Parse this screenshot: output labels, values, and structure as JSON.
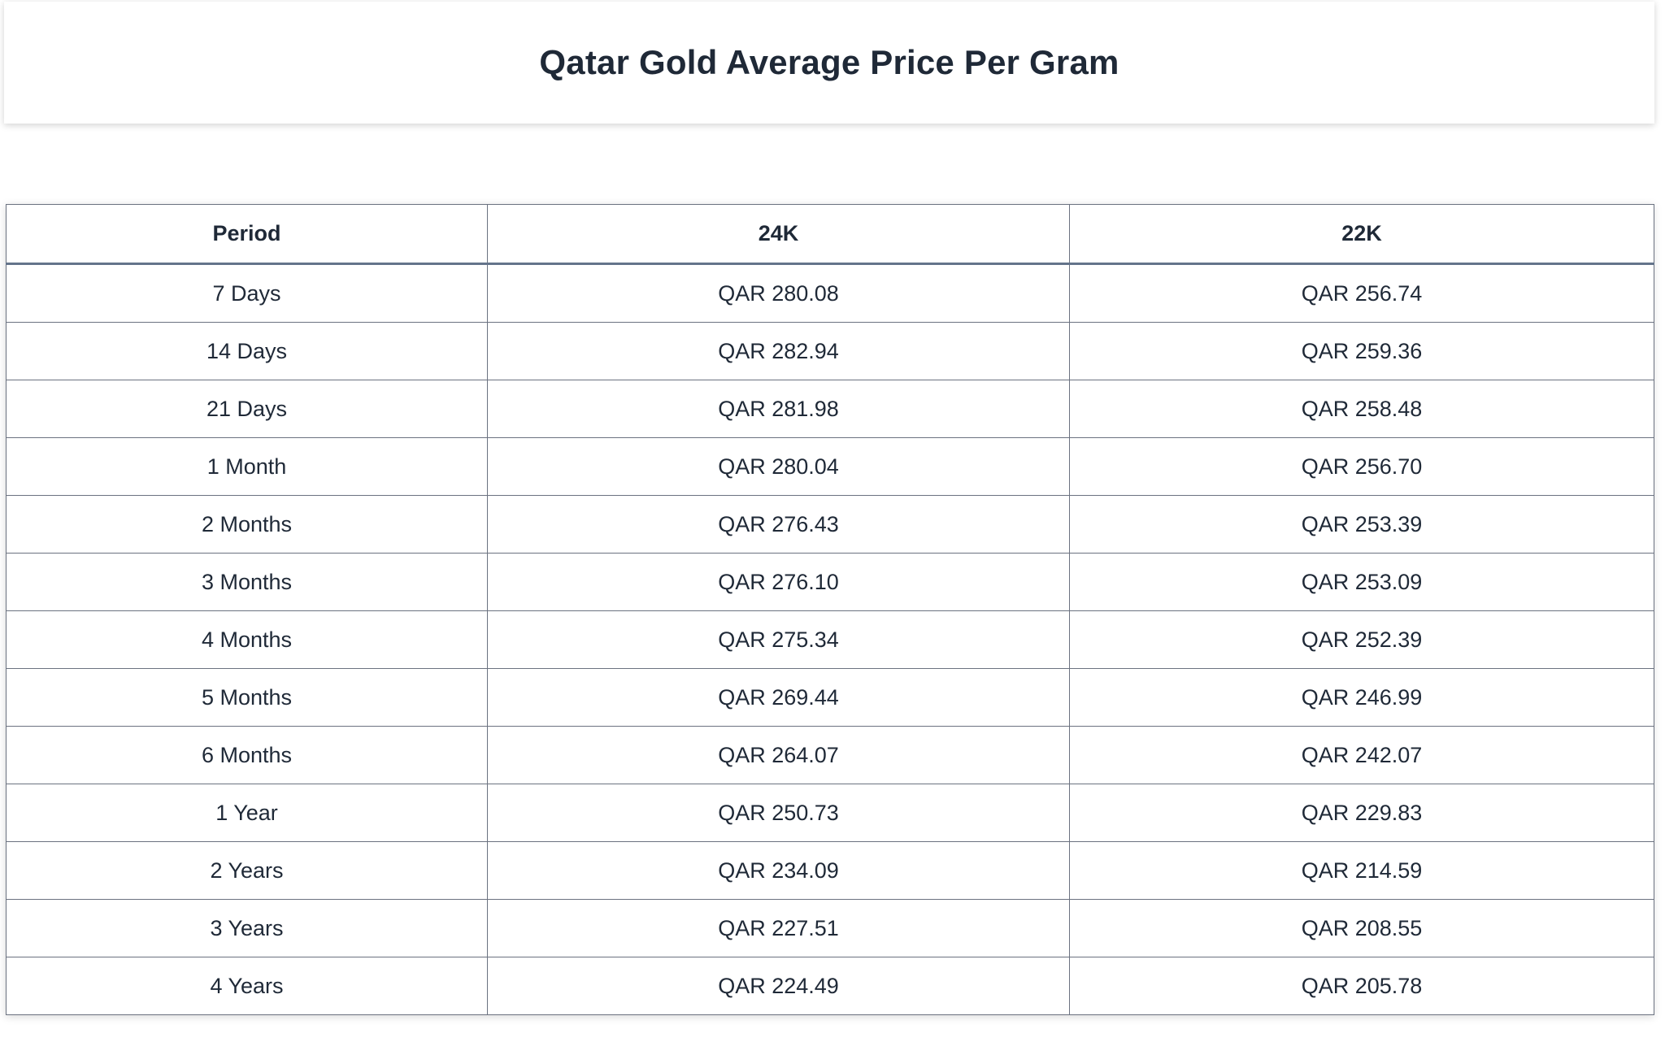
{
  "page": {
    "title": "Qatar Gold Average Price Per Gram"
  },
  "table": {
    "headers": [
      "Period",
      "24K",
      "22K"
    ],
    "rows": [
      [
        "7 Days",
        "QAR 280.08",
        "QAR 256.74"
      ],
      [
        "14 Days",
        "QAR 282.94",
        "QAR 259.36"
      ],
      [
        "21 Days",
        "QAR 281.98",
        "QAR 258.48"
      ],
      [
        "1 Month",
        "QAR 280.04",
        "QAR 256.70"
      ],
      [
        "2 Months",
        "QAR 276.43",
        "QAR 253.39"
      ],
      [
        "3 Months",
        "QAR 276.10",
        "QAR 253.09"
      ],
      [
        "4 Months",
        "QAR 275.34",
        "QAR 252.39"
      ],
      [
        "5 Months",
        "QAR 269.44",
        "QAR 246.99"
      ],
      [
        "6 Months",
        "QAR 264.07",
        "QAR 242.07"
      ],
      [
        "1 Year",
        "QAR 250.73",
        "QAR 229.83"
      ],
      [
        "2 Years",
        "QAR 234.09",
        "QAR 214.59"
      ],
      [
        "3 Years",
        "QAR 227.51",
        "QAR 208.55"
      ],
      [
        "4 Years",
        "QAR 224.49",
        "QAR 205.78"
      ]
    ]
  }
}
